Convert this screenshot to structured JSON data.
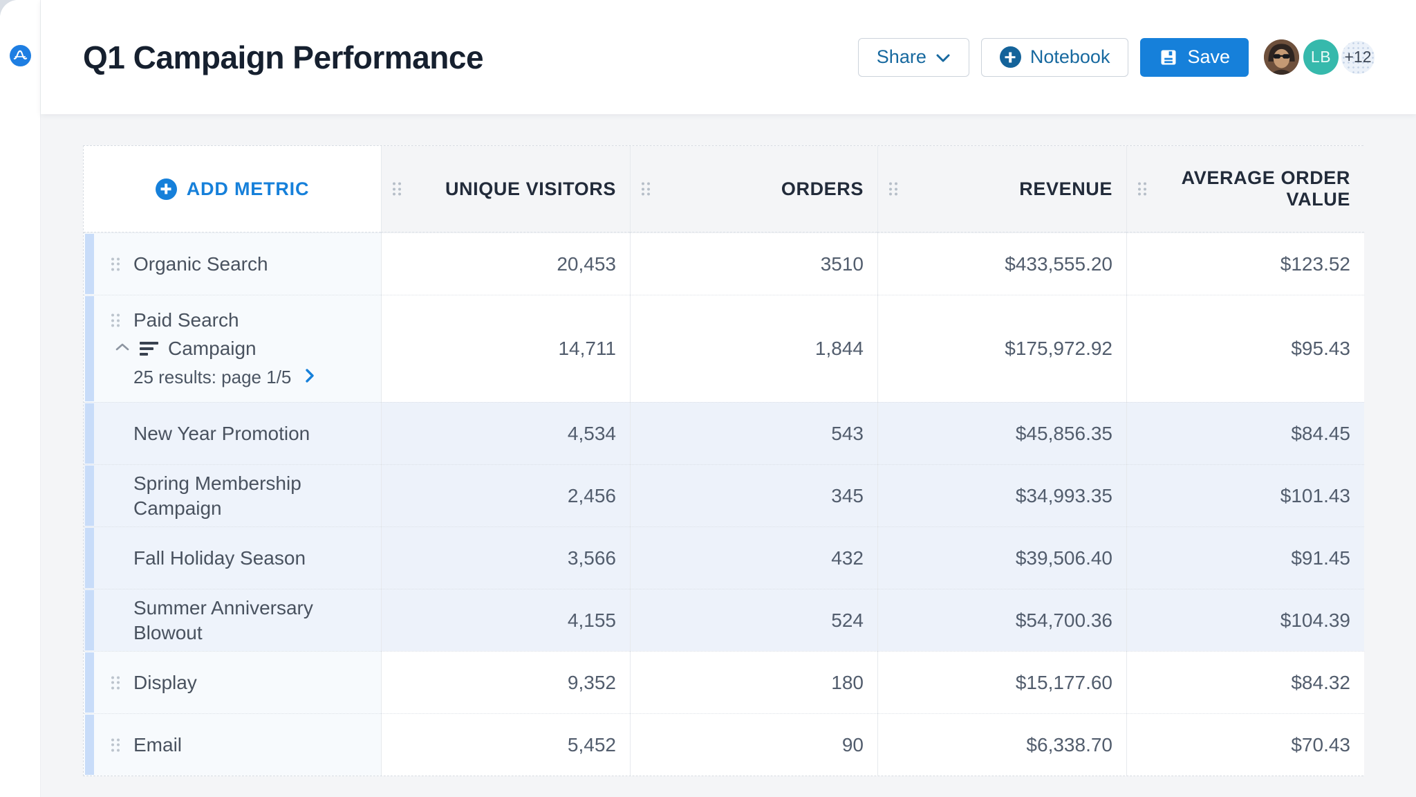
{
  "header": {
    "title": "Q1 Campaign Performance",
    "share_label": "Share",
    "notebook_label": "Notebook",
    "save_label": "Save",
    "avatar_initials": "LB",
    "avatar_overflow": "+12"
  },
  "colors": {
    "primary_blue": "#1680da",
    "steel_blue": "#17699f",
    "teal_avatar": "#36b9ac",
    "row_accent_light": "#c8dcf9",
    "row_accent_child": "#a4c6f3",
    "child_row_tint": "#edf2fa",
    "header_cell_bg": "#f4f5f7"
  },
  "table": {
    "add_metric_label": "ADD METRIC",
    "columns": [
      "UNIQUE VISITORS",
      "ORDERS",
      "REVENUE",
      "AVERAGE ORDER VALUE"
    ],
    "rows": [
      {
        "type": "parent",
        "label": "Organic Search",
        "values": [
          "20,453",
          "3510",
          "$433,555.20",
          "$123.52"
        ]
      },
      {
        "type": "group",
        "label_line1": "Paid Search",
        "label_line2": "Campaign",
        "results_label": "25 results: page 1/5",
        "values": [
          "14,711",
          "1,844",
          "$175,972.92",
          "$95.43"
        ]
      },
      {
        "type": "child",
        "label": "New Year Promotion",
        "values": [
          "4,534",
          "543",
          "$45,856.35",
          "$84.45"
        ]
      },
      {
        "type": "child",
        "label": "Spring Membership Campaign",
        "values": [
          "2,456",
          "345",
          "$34,993.35",
          "$101.43"
        ]
      },
      {
        "type": "child",
        "label": "Fall Holiday Season",
        "values": [
          "3,566",
          "432",
          "$39,506.40",
          "$91.45"
        ]
      },
      {
        "type": "child",
        "label": "Summer Anniversary Blowout",
        "values": [
          "4,155",
          "524",
          "$54,700.36",
          "$104.39"
        ]
      },
      {
        "type": "parent",
        "label": "Display",
        "values": [
          "9,352",
          "180",
          "$15,177.60",
          "$84.32"
        ]
      },
      {
        "type": "parent",
        "label": "Email",
        "values": [
          "5,452",
          "90",
          "$6,338.70",
          "$70.43"
        ]
      }
    ]
  }
}
